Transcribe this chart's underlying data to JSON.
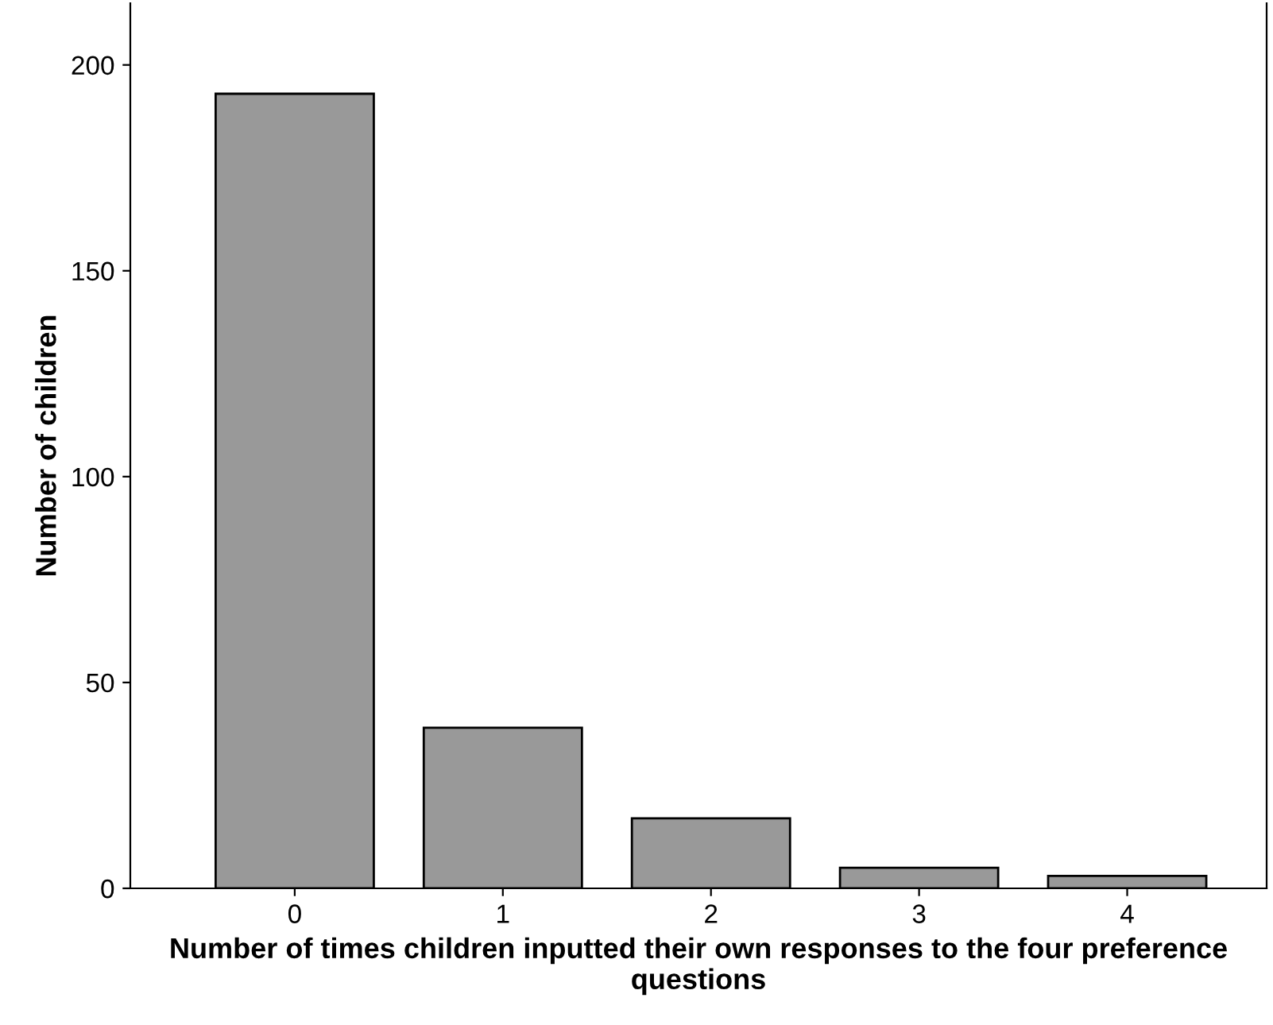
{
  "chart_data": {
    "type": "bar",
    "xlabel": "Number of times children inputted their own responses to the four preference questions",
    "ylabel": "Number of children",
    "categories": [
      "0",
      "1",
      "2",
      "3",
      "4"
    ],
    "values": [
      193,
      39,
      17,
      5,
      3
    ],
    "color": "#999999",
    "ylim": [
      0,
      215
    ],
    "yticks": [
      0,
      50,
      100,
      150,
      200
    ],
    "grid": false,
    "legend": false
  }
}
